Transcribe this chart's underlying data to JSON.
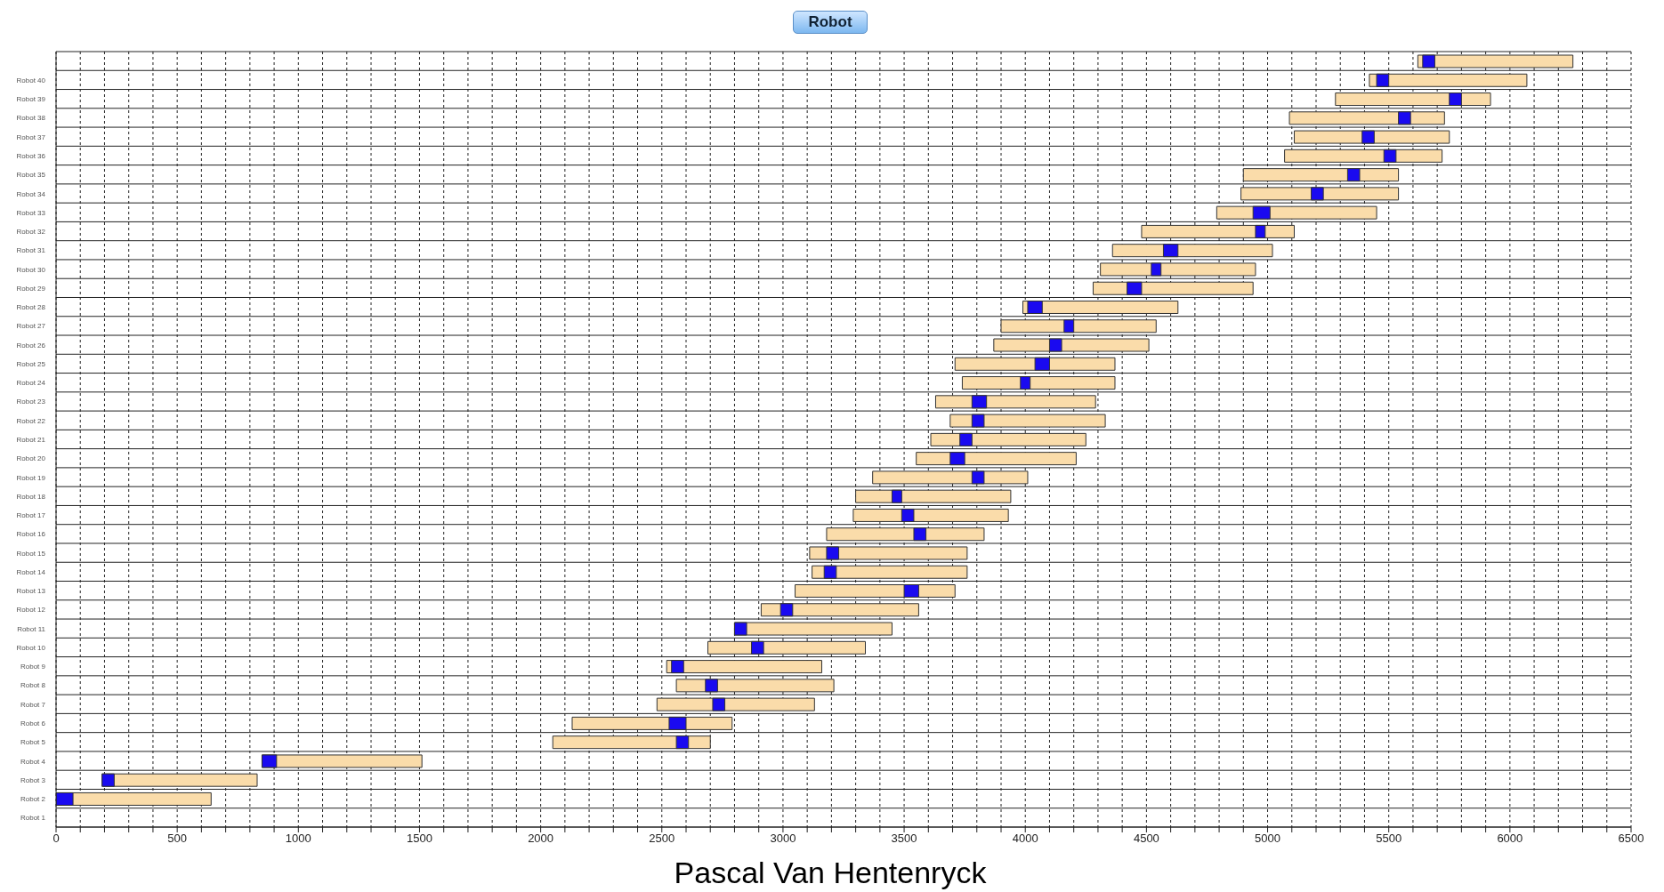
{
  "chart_data": {
    "type": "bar",
    "orientation": "horizontal",
    "title": "Robot",
    "categories": [
      null,
      "Robot 40",
      "Robot 39",
      "Robot 38",
      "Robot 37",
      "Robot 36",
      "Robot 35",
      "Robot 34",
      "Robot 33",
      "Robot 32",
      "Robot 31",
      "Robot 30",
      "Robot 29",
      "Robot 28",
      "Robot 27",
      "Robot 26",
      "Robot 25",
      "Robot 24",
      "Robot 23",
      "Robot 22",
      "Robot 21",
      "Robot 20",
      "Robot 19",
      "Robot 18",
      "Robot 17",
      "Robot 16",
      "Robot 15",
      "Robot 14",
      "Robot 13",
      "Robot 12",
      "Robot 11",
      "Robot 10",
      "Robot 9",
      "Robot 8",
      "Robot 7",
      "Robot 6",
      "Robot 5",
      "Robot 4",
      "Robot 3",
      "Robot 2",
      "Robot 1"
    ],
    "series": [
      {
        "color": "#fadcaa",
        "base": [
          5620,
          5420,
          5280,
          5090,
          5110,
          5070,
          4900,
          4890,
          4790,
          4480,
          4360,
          4310,
          4280,
          3990,
          3900,
          3870,
          3710,
          3740,
          3630,
          3690,
          3610,
          3550,
          3370,
          3300,
          3290,
          3180,
          3110,
          3120,
          3050,
          2910,
          2800,
          2690,
          2520,
          2560,
          2480,
          2130,
          2050,
          850,
          190,
          0,
          null
        ],
        "values": [
          640,
          650,
          640,
          640,
          640,
          650,
          640,
          650,
          660,
          630,
          660,
          640,
          660,
          640,
          640,
          640,
          660,
          630,
          660,
          640,
          640,
          660,
          640,
          640,
          640,
          650,
          650,
          640,
          660,
          650,
          650,
          650,
          640,
          650,
          650,
          660,
          650,
          660,
          640,
          640,
          null
        ]
      },
      {
        "color": "#1a0af0",
        "base": [
          5640,
          5450,
          5750,
          5540,
          5390,
          5480,
          5330,
          5180,
          4940,
          4950,
          4570,
          4520,
          4420,
          4010,
          4160,
          4100,
          4040,
          3980,
          3780,
          3780,
          3730,
          3690,
          3780,
          3450,
          3490,
          3540,
          3180,
          3170,
          3500,
          2990,
          2800,
          2870,
          2540,
          2680,
          2710,
          2530,
          2560,
          850,
          190,
          0,
          null
        ],
        "values": [
          50,
          50,
          50,
          50,
          50,
          50,
          50,
          50,
          70,
          40,
          60,
          40,
          60,
          60,
          40,
          50,
          60,
          40,
          60,
          50,
          50,
          60,
          50,
          40,
          50,
          50,
          50,
          50,
          60,
          50,
          50,
          50,
          50,
          50,
          50,
          70,
          50,
          60,
          50,
          70,
          null
        ]
      }
    ],
    "xlim": [
      0,
      6500
    ],
    "xticks": [
      0,
      {
        "value": 100,
        "label": null
      },
      {
        "value": 200,
        "label": null
      },
      {
        "value": 300,
        "label": null
      },
      {
        "value": 400,
        "label": null
      },
      500,
      {
        "value": 600,
        "label": null
      },
      {
        "value": 700,
        "label": null
      },
      {
        "value": 800,
        "label": null
      },
      {
        "value": 900,
        "label": null
      },
      1000,
      {
        "value": 1100,
        "label": null
      },
      {
        "value": 1200,
        "label": null
      },
      {
        "value": 1300,
        "label": null
      },
      {
        "value": 1400,
        "label": null
      },
      1500,
      {
        "value": 1600,
        "label": null
      },
      {
        "value": 1700,
        "label": null
      },
      {
        "value": 1800,
        "label": null
      },
      {
        "value": 1900,
        "label": null
      },
      2000,
      {
        "value": 2100,
        "label": null
      },
      {
        "value": 2200,
        "label": null
      },
      {
        "value": 2300,
        "label": null
      },
      {
        "value": 2400,
        "label": null
      },
      2500,
      {
        "value": 2600,
        "label": null
      },
      {
        "value": 2700,
        "label": null
      },
      {
        "value": 2800,
        "label": null
      },
      {
        "value": 2900,
        "label": null
      },
      3000,
      {
        "value": 3100,
        "label": null
      },
      {
        "value": 3200,
        "label": null
      },
      {
        "value": 3300,
        "label": null
      },
      {
        "value": 3400,
        "label": null
      },
      3500,
      {
        "value": 3600,
        "label": null
      },
      {
        "value": 3700,
        "label": null
      },
      {
        "value": 3800,
        "label": null
      },
      {
        "value": 3900,
        "label": null
      },
      4000,
      {
        "value": 4100,
        "label": null
      },
      {
        "value": 4200,
        "label": null
      },
      {
        "value": 4300,
        "label": null
      },
      {
        "value": 4400,
        "label": null
      },
      4500,
      {
        "value": 4600,
        "label": null
      },
      {
        "value": 4700,
        "label": null
      },
      {
        "value": 4800,
        "label": null
      },
      {
        "value": 4900,
        "label": null
      },
      5000,
      {
        "value": 5100,
        "label": null
      },
      {
        "value": 5200,
        "label": null
      },
      {
        "value": 5300,
        "label": null
      },
      {
        "value": 5400,
        "label": null
      },
      5500,
      {
        "value": 5600,
        "label": null
      },
      {
        "value": 5700,
        "label": null
      },
      {
        "value": 5800,
        "label": null
      },
      {
        "value": 5900,
        "label": null
      },
      6000,
      {
        "value": 6100,
        "label": null
      },
      {
        "value": 6200,
        "label": null
      },
      {
        "value": 6300,
        "label": null
      },
      {
        "value": 6400,
        "label": null
      },
      6500
    ],
    "grid": true,
    "annotations": [
      "Pascal Van Hentenryck"
    ]
  }
}
